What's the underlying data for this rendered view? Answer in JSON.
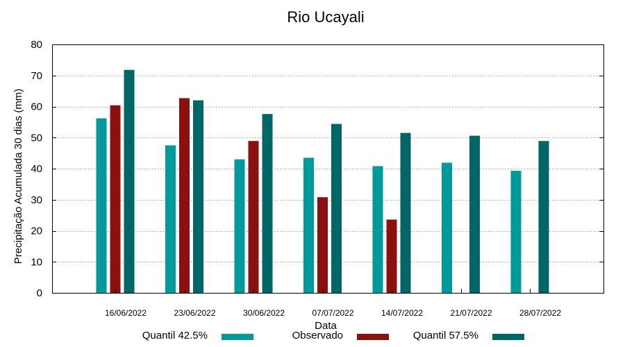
{
  "chart_data": {
    "type": "bar",
    "title": "Rio Ucayali",
    "xlabel": "Data",
    "ylabel": "Precipitação Acumulada 30 dias (mm)",
    "ylim": [
      0,
      80
    ],
    "yticks": [
      0,
      10,
      20,
      30,
      40,
      50,
      60,
      70,
      80
    ],
    "grid": true,
    "categories": [
      "16/06/2022",
      "23/06/2022",
      "30/06/2022",
      "07/07/2022",
      "14/07/2022",
      "21/07/2022",
      "28/07/2022"
    ],
    "series": [
      {
        "name": "Quantil 42.5%",
        "color": "#009a9a",
        "values": [
          56.2,
          47.5,
          43.0,
          43.5,
          40.8,
          41.9,
          39.3
        ]
      },
      {
        "name": "Observado",
        "color": "#8c1010",
        "values": [
          60.4,
          62.7,
          48.9,
          30.8,
          23.6,
          null,
          null
        ]
      },
      {
        "name": "Quantil 57.5%",
        "color": "#006666",
        "values": [
          71.8,
          62.0,
          57.6,
          54.4,
          51.5,
          50.6,
          48.9
        ]
      }
    ]
  }
}
